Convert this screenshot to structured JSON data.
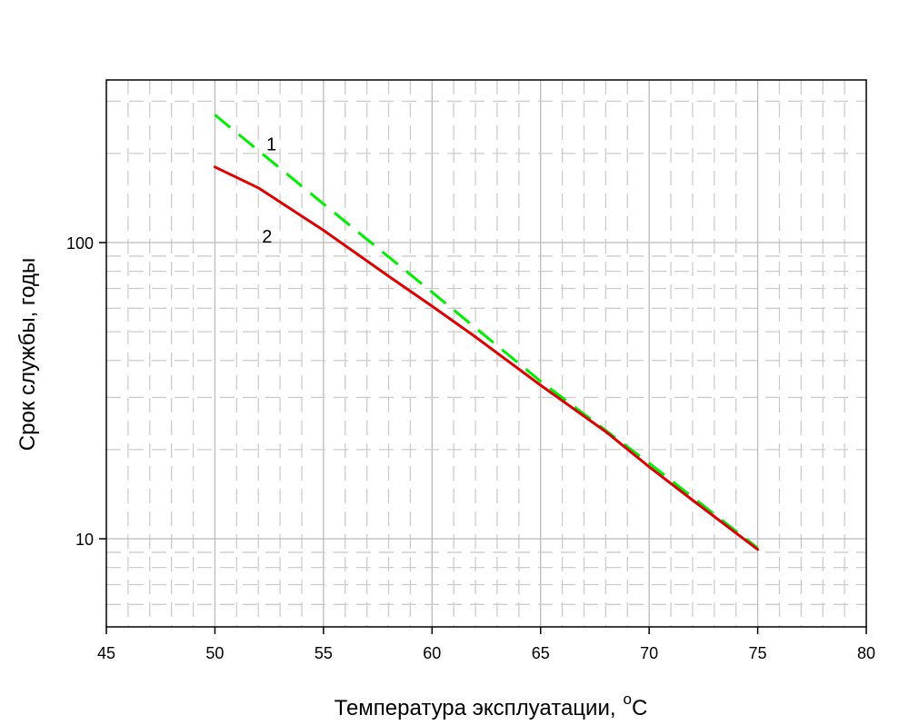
{
  "chart_data": {
    "type": "line",
    "xlabel": "Температура эксплуатации,",
    "xlabel_unit_sup": "o",
    "xlabel_unit": "C",
    "ylabel": "Срок службы, годы",
    "xlim": [
      45,
      80
    ],
    "ylim": [
      5,
      350
    ],
    "yscale": "log",
    "grid": true,
    "x_ticks": [
      "45",
      "50",
      "55",
      "60",
      "65",
      "70",
      "75",
      "80"
    ],
    "y_ticks": [
      "10",
      "100"
    ],
    "series": [
      {
        "name": "1",
        "color": "#00ee00",
        "style": "dashed",
        "x": [
          50,
          55,
          60,
          65,
          70,
          75
        ],
        "y": [
          270,
          135,
          68,
          34,
          18,
          9.3
        ]
      },
      {
        "name": "2",
        "color": "#dd0000",
        "style": "solid",
        "x": [
          50,
          52,
          55,
          58,
          60,
          62,
          65,
          68,
          70,
          72,
          75
        ],
        "y": [
          180,
          153,
          110,
          77,
          61,
          48,
          33,
          23,
          17.5,
          13.5,
          9.2
        ]
      }
    ]
  }
}
